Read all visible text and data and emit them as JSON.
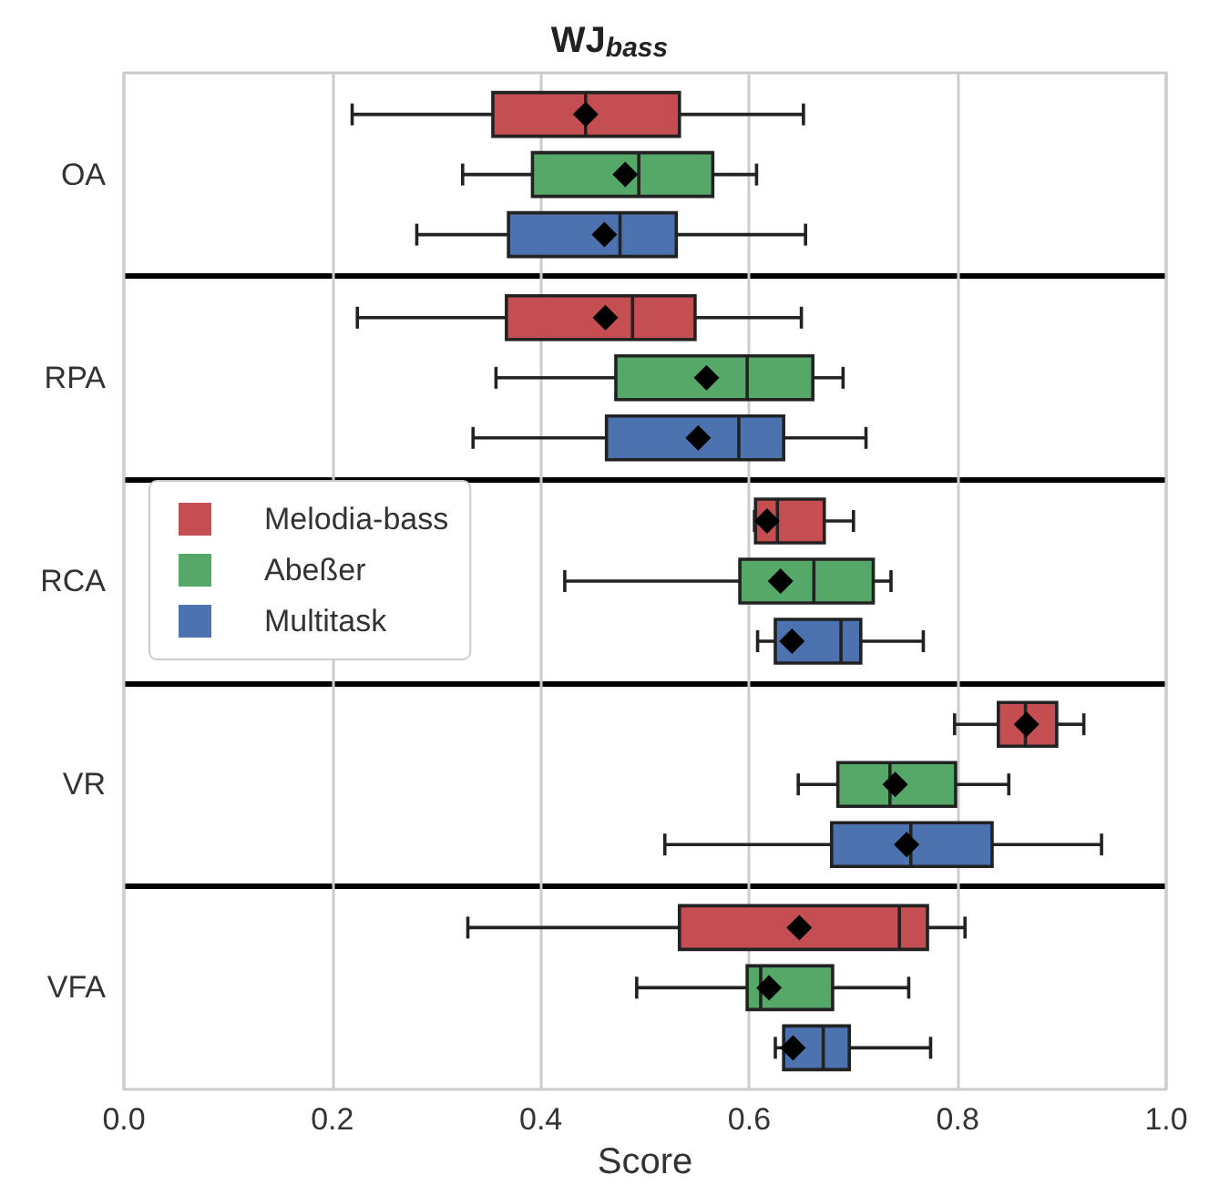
{
  "chart_data": {
    "type": "box",
    "title": "WJ$_{bass}$",
    "xlabel": "Score",
    "orientation": "horizontal",
    "categories": [
      "OA",
      "RPA",
      "RCA",
      "VR",
      "VFA"
    ],
    "series": [
      {
        "name": "Melodia-bass",
        "color": "#c44e52",
        "boxes": [
          {
            "low": 0.219,
            "q1": 0.354,
            "median": 0.443,
            "q3": 0.533,
            "high": 0.652,
            "mean": 0.443
          },
          {
            "low": 0.224,
            "q1": 0.367,
            "median": 0.488,
            "q3": 0.548,
            "high": 0.65,
            "mean": 0.462
          },
          {
            "low": 0.605,
            "q1": 0.606,
            "median": 0.627,
            "q3": 0.672,
            "high": 0.7,
            "mean": 0.617
          },
          {
            "low": 0.797,
            "q1": 0.839,
            "median": 0.865,
            "q3": 0.895,
            "high": 0.921,
            "mean": 0.866
          },
          {
            "low": 0.33,
            "q1": 0.533,
            "median": 0.744,
            "q3": 0.771,
            "high": 0.807,
            "mean": 0.648
          }
        ]
      },
      {
        "name": "Abeßer",
        "color": "#55a868",
        "boxes": [
          {
            "low": 0.325,
            "q1": 0.392,
            "median": 0.494,
            "q3": 0.565,
            "high": 0.607,
            "mean": 0.481
          },
          {
            "low": 0.357,
            "q1": 0.472,
            "median": 0.598,
            "q3": 0.661,
            "high": 0.69,
            "mean": 0.559
          },
          {
            "low": 0.423,
            "q1": 0.591,
            "median": 0.662,
            "q3": 0.719,
            "high": 0.736,
            "mean": 0.63
          },
          {
            "low": 0.647,
            "q1": 0.685,
            "median": 0.735,
            "q3": 0.798,
            "high": 0.849,
            "mean": 0.74
          },
          {
            "low": 0.492,
            "q1": 0.598,
            "median": 0.611,
            "q3": 0.68,
            "high": 0.753,
            "mean": 0.619
          }
        ]
      },
      {
        "name": "Multitask",
        "color": "#4c72b0",
        "boxes": [
          {
            "low": 0.281,
            "q1": 0.369,
            "median": 0.476,
            "q3": 0.53,
            "high": 0.654,
            "mean": 0.461
          },
          {
            "low": 0.335,
            "q1": 0.463,
            "median": 0.59,
            "q3": 0.633,
            "high": 0.712,
            "mean": 0.551
          },
          {
            "low": 0.608,
            "q1": 0.625,
            "median": 0.688,
            "q3": 0.707,
            "high": 0.767,
            "mean": 0.641
          },
          {
            "low": 0.519,
            "q1": 0.679,
            "median": 0.755,
            "q3": 0.833,
            "high": 0.938,
            "mean": 0.751
          },
          {
            "low": 0.625,
            "q1": 0.633,
            "median": 0.671,
            "q3": 0.696,
            "high": 0.774,
            "mean": 0.642
          }
        ]
      }
    ],
    "xlim": [
      0,
      1
    ],
    "xticks": [
      {
        "value": 0,
        "label": "0.0"
      },
      0.2,
      0.4,
      0.6,
      0.8,
      {
        "value": 1,
        "label": "1.0"
      }
    ],
    "grid": "x",
    "legend": "center left"
  }
}
